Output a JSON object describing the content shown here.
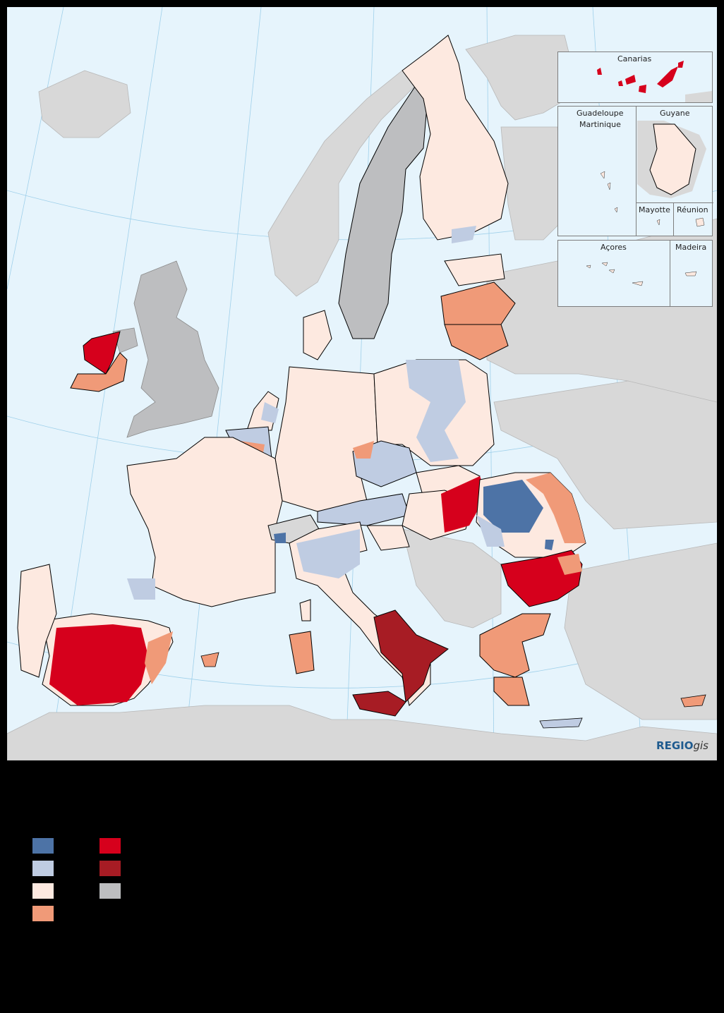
{
  "insets": {
    "canarias": "Canarias",
    "guadeloupe": "Guadeloupe",
    "martinique": "Martinique",
    "guyane": "Guyane",
    "mayotte": "Mayotte",
    "reunion": "Réunion",
    "acores": "Açores",
    "madeira": "Madeira"
  },
  "branding": {
    "regio": "REGIO",
    "gis": "gis"
  },
  "colors": {
    "sea": "#e6f4fc",
    "non_eu_land": "#d8d8d8",
    "no_data": "#bdbec0",
    "dark_blue": "#4d73a6",
    "light_blue": "#bfcce2",
    "very_light": "#fde9e0",
    "salmon": "#f09a78",
    "red": "#d6001c",
    "dark_red": "#a71c24",
    "no_data_swatch": "#bdbec0"
  },
  "legend": {
    "left_column": [
      "dark-blue",
      "light-blue",
      "very-light",
      "salmon"
    ],
    "right_column": [
      "red",
      "dark-red",
      "no-data"
    ]
  }
}
